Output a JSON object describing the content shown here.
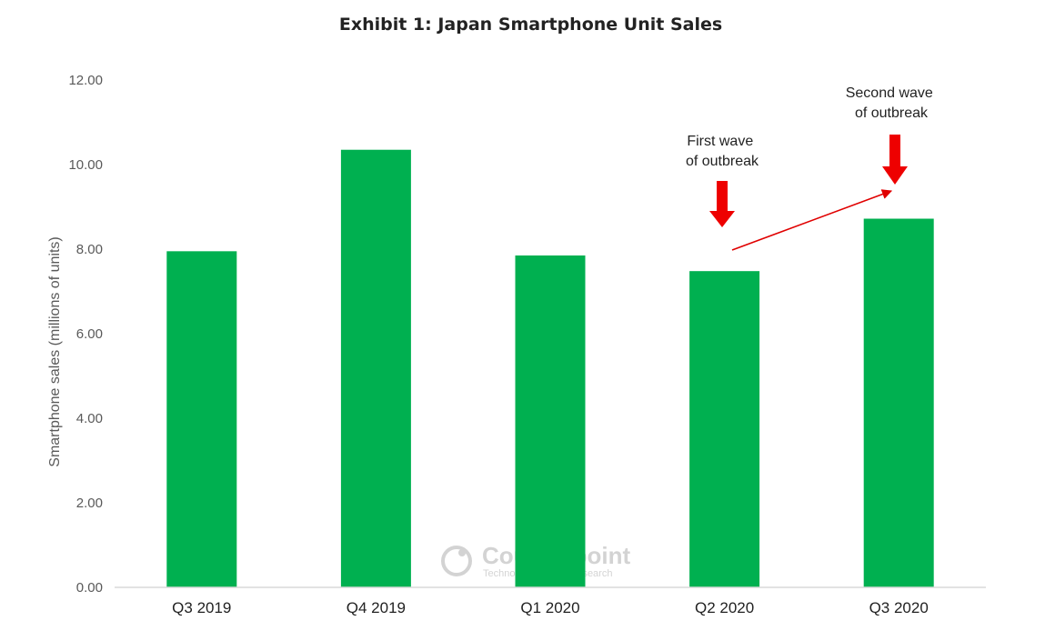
{
  "chart_data": {
    "type": "bar",
    "title": "Exhibit 1: Japan Smartphone Unit Sales",
    "ylabel": "Smartphone sales (millions of units)",
    "xlabel": "",
    "categories": [
      "Q3 2019",
      "Q4 2019",
      "Q1 2020",
      "Q2 2020",
      "Q3 2020"
    ],
    "values": [
      7.95,
      10.35,
      7.85,
      7.48,
      8.72
    ],
    "ylim": [
      0,
      12
    ],
    "yticks": [
      "0.00",
      "2.00",
      "4.00",
      "6.00",
      "8.00",
      "10.00",
      "12.00"
    ],
    "grid": false,
    "legend": "none",
    "bar_color": "#00b050",
    "annotations": [
      {
        "lines": [
          "First wave",
          "of outbreak"
        ],
        "category": "Q2 2020",
        "marker": "red-down-arrow"
      },
      {
        "lines": [
          "Second wave",
          "of outbreak"
        ],
        "category": "Q3 2020",
        "marker": "red-down-arrow"
      }
    ],
    "trend_arrow": {
      "from_category": "Q2 2020",
      "to_category": "Q3 2020",
      "color": "#e00000"
    },
    "watermark": {
      "brand": "Counterpoint",
      "tagline": "Technology Market Research"
    }
  }
}
